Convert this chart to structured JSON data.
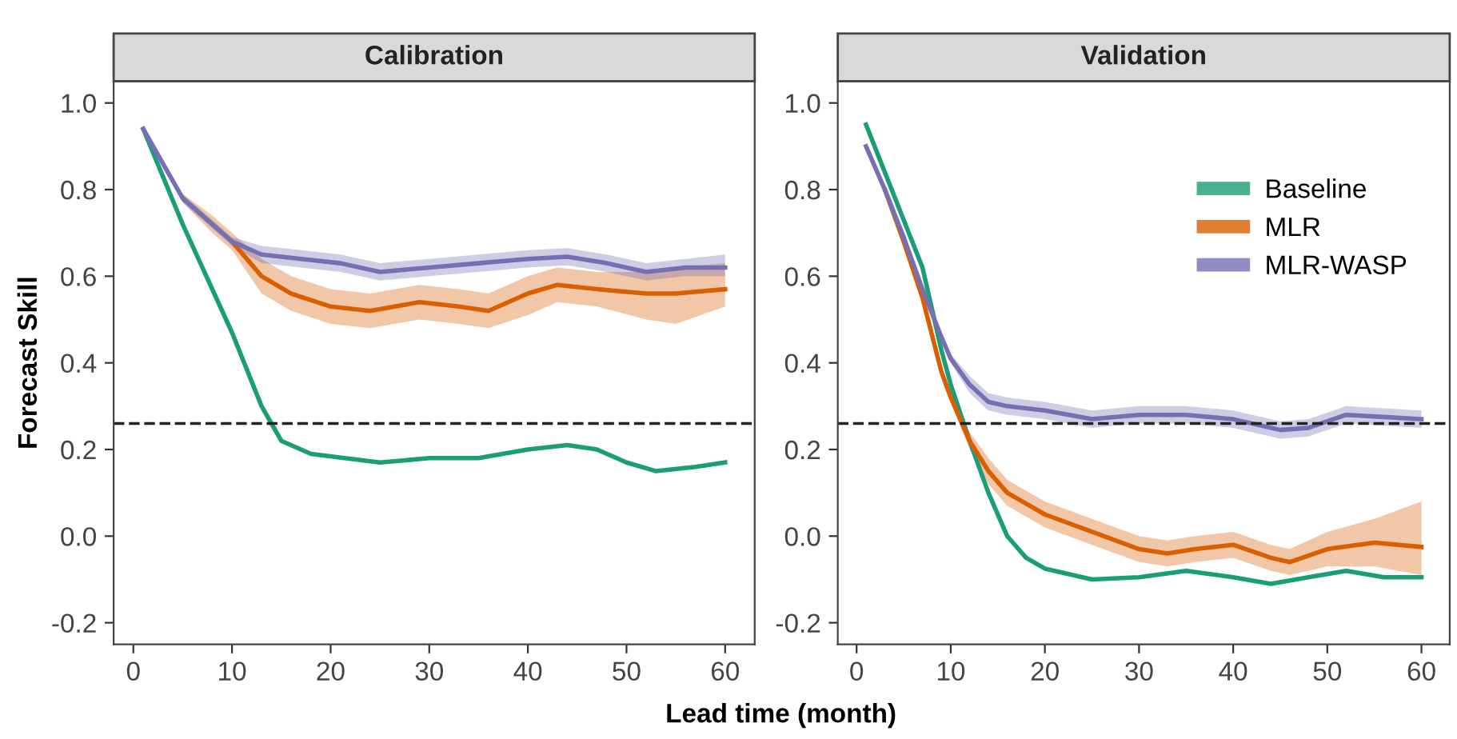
{
  "chart_data": [
    {
      "type": "line",
      "title": "Calibration",
      "ylabel": "Forecast Skill",
      "xlabel": "Lead time (month)",
      "xlim": [
        -2,
        63
      ],
      "ylim": [
        -0.25,
        1.05
      ],
      "xticks": [
        0,
        10,
        20,
        30,
        40,
        50,
        60
      ],
      "yticks": [
        {
          "value": -0.2,
          "label": "-0.2"
        },
        {
          "value": 0,
          "label": "0.0"
        },
        {
          "value": 0.2,
          "label": "0.2"
        },
        {
          "value": 0.4,
          "label": "0.4"
        },
        {
          "value": 0.6,
          "label": "0.6"
        },
        {
          "value": 0.8,
          "label": "0.8"
        },
        {
          "value": 1,
          "label": "1.0"
        }
      ],
      "grid": false,
      "legend": false,
      "line_style": "solid",
      "marker": "none",
      "ref_lines": [
        {
          "axis": "y",
          "value": 0.26,
          "label": null,
          "line_style": "dashed",
          "color": "#222222"
        }
      ],
      "series": [
        {
          "color": "#1b9e77",
          "x": [
            1,
            5,
            10,
            13,
            15,
            18,
            25,
            30,
            35,
            40,
            44,
            47,
            50,
            53,
            57,
            60
          ],
          "values": [
            0.94,
            0.72,
            0.47,
            0.3,
            0.22,
            0.19,
            0.17,
            0.18,
            0.18,
            0.2,
            0.21,
            0.2,
            0.17,
            0.15,
            0.16,
            0.17
          ]
        },
        {
          "color": "#d95f02",
          "x": [
            1,
            5,
            8,
            10,
            13,
            16,
            20,
            24,
            29,
            33,
            36,
            40,
            43,
            47,
            52,
            55,
            60
          ],
          "values": [
            null,
            null,
            null,
            0.68,
            0.6,
            0.56,
            0.53,
            0.52,
            0.54,
            0.53,
            0.52,
            0.56,
            0.58,
            0.57,
            0.56,
            0.56,
            0.57
          ],
          "lower": [
            0.94,
            0.77,
            0.7,
            0.66,
            0.56,
            0.52,
            0.49,
            0.48,
            0.5,
            0.49,
            0.48,
            0.51,
            0.54,
            0.53,
            0.5,
            0.49,
            0.53
          ],
          "upper": [
            0.94,
            0.79,
            0.74,
            0.7,
            0.64,
            0.6,
            0.57,
            0.56,
            0.58,
            0.57,
            0.56,
            0.6,
            0.62,
            0.61,
            0.61,
            0.62,
            0.63
          ]
        },
        {
          "color": "#7570b3",
          "x": [
            1,
            5,
            10,
            13,
            17,
            21,
            25,
            30,
            35,
            40,
            44,
            48,
            52,
            56,
            60
          ],
          "values": [
            0.94,
            0.78,
            0.68,
            0.65,
            0.64,
            0.63,
            0.61,
            0.62,
            0.63,
            0.64,
            0.645,
            0.63,
            0.61,
            0.62,
            0.62
          ],
          "lower": [
            0.94,
            0.77,
            0.67,
            0.63,
            0.62,
            0.61,
            0.59,
            0.6,
            0.61,
            0.62,
            0.625,
            0.61,
            0.59,
            0.6,
            0.6
          ],
          "upper": [
            0.94,
            0.79,
            0.69,
            0.67,
            0.66,
            0.65,
            0.63,
            0.64,
            0.65,
            0.66,
            0.665,
            0.65,
            0.63,
            0.64,
            0.65
          ]
        }
      ]
    },
    {
      "type": "line",
      "title": "Validation",
      "xlim": [
        -2,
        63
      ],
      "ylim": [
        -0.25,
        1.05
      ],
      "xticks": [
        0,
        10,
        20,
        30,
        40,
        50,
        60
      ],
      "yticks": [
        {
          "value": -0.2,
          "label": "-0.2"
        },
        {
          "value": 0,
          "label": "0.0"
        },
        {
          "value": 0.2,
          "label": "0.2"
        },
        {
          "value": 0.4,
          "label": "0.4"
        },
        {
          "value": 0.6,
          "label": "0.6"
        },
        {
          "value": 0.8,
          "label": "0.8"
        },
        {
          "value": 1,
          "label": "1.0"
        }
      ],
      "grid": false,
      "legend": "top right",
      "line_style": "solid",
      "marker": "none",
      "ref_lines": [
        {
          "axis": "y",
          "value": 0.26,
          "label": null,
          "line_style": "dashed",
          "color": "#222222"
        }
      ],
      "series": [
        {
          "name": "Baseline",
          "color": "#1b9e77",
          "x": [
            1,
            3,
            5,
            7,
            9,
            10,
            12,
            14,
            16,
            18,
            20,
            25,
            30,
            35,
            40,
            44,
            48,
            52,
            56,
            60
          ],
          "values": [
            0.95,
            0.84,
            0.73,
            0.62,
            0.43,
            0.35,
            0.22,
            0.1,
            0.0,
            -0.05,
            -0.075,
            -0.1,
            -0.095,
            -0.08,
            -0.095,
            -0.11,
            -0.095,
            -0.08,
            -0.095,
            -0.095
          ]
        },
        {
          "name": "MLR",
          "color": "#d95f02",
          "x": [
            1,
            3,
            5,
            7,
            9,
            10,
            12,
            14,
            16,
            20,
            25,
            30,
            33,
            36,
            40,
            44,
            46,
            50,
            55,
            60
          ],
          "values": [
            null,
            0.8,
            0.68,
            0.55,
            0.38,
            0.32,
            0.22,
            0.15,
            0.1,
            0.05,
            0.01,
            -0.03,
            -0.04,
            -0.03,
            -0.02,
            -0.05,
            -0.06,
            -0.03,
            -0.015,
            -0.025
          ],
          "lower": [
            0.9,
            0.79,
            0.67,
            0.54,
            0.37,
            0.31,
            0.2,
            0.12,
            0.07,
            0.02,
            -0.02,
            -0.06,
            -0.07,
            -0.06,
            -0.05,
            -0.08,
            -0.09,
            -0.07,
            -0.07,
            -0.09
          ],
          "upper": [
            0.9,
            0.81,
            0.69,
            0.56,
            0.39,
            0.33,
            0.24,
            0.18,
            0.13,
            0.08,
            0.04,
            0.0,
            -0.01,
            0.0,
            0.01,
            -0.02,
            -0.03,
            0.01,
            0.04,
            0.08
          ]
        },
        {
          "name": "MLR-WASP",
          "color": "#7570b3",
          "x": [
            1,
            3,
            5,
            7,
            9,
            10,
            12,
            14,
            16,
            20,
            25,
            30,
            35,
            40,
            45,
            48,
            52,
            56,
            60
          ],
          "values": [
            0.9,
            0.8,
            0.69,
            0.57,
            0.46,
            0.41,
            0.35,
            0.31,
            0.3,
            0.29,
            0.27,
            0.28,
            0.28,
            0.27,
            0.245,
            0.25,
            0.28,
            0.275,
            0.27
          ],
          "lower": [
            0.9,
            0.79,
            0.68,
            0.56,
            0.45,
            0.4,
            0.33,
            0.29,
            0.28,
            0.27,
            0.25,
            0.26,
            0.26,
            0.25,
            0.225,
            0.23,
            0.26,
            0.255,
            0.25
          ],
          "upper": [
            0.9,
            0.81,
            0.7,
            0.58,
            0.47,
            0.42,
            0.37,
            0.33,
            0.32,
            0.31,
            0.29,
            0.3,
            0.3,
            0.29,
            0.265,
            0.27,
            0.3,
            0.295,
            0.29
          ]
        }
      ]
    }
  ]
}
